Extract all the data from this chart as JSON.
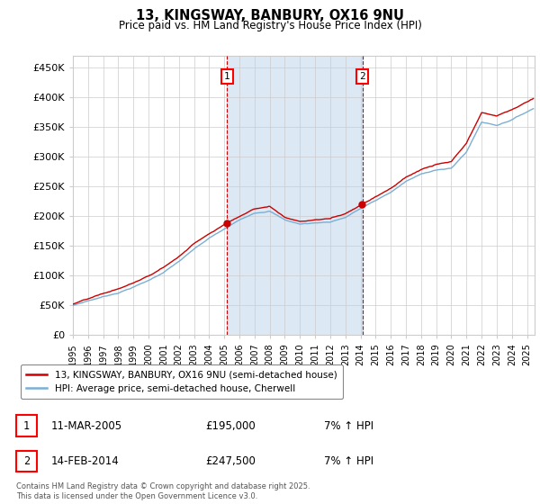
{
  "title": "13, KINGSWAY, BANBURY, OX16 9NU",
  "subtitle": "Price paid vs. HM Land Registry's House Price Index (HPI)",
  "ylabel_ticks": [
    "£0",
    "£50K",
    "£100K",
    "£150K",
    "£200K",
    "£250K",
    "£300K",
    "£350K",
    "£400K",
    "£450K"
  ],
  "ylabel_values": [
    0,
    50000,
    100000,
    150000,
    200000,
    250000,
    300000,
    350000,
    400000,
    450000
  ],
  "ylim": [
    0,
    470000
  ],
  "xlim_start": 1995.0,
  "xlim_end": 2025.5,
  "hpi_color": "#7bafd4",
  "price_color": "#cc0000",
  "sale1_x": 2005.19,
  "sale1_y": 195000,
  "sale2_x": 2014.12,
  "sale2_y": 247500,
  "vline_color": "#cc0000",
  "shade_color": "#dce9f5",
  "legend_label1": "13, KINGSWAY, BANBURY, OX16 9NU (semi-detached house)",
  "legend_label2": "HPI: Average price, semi-detached house, Cherwell",
  "annotation1_label": "1",
  "annotation2_label": "2",
  "table_row1": [
    "1",
    "11-MAR-2005",
    "£195,000",
    "7% ↑ HPI"
  ],
  "table_row2": [
    "2",
    "14-FEB-2014",
    "£247,500",
    "7% ↑ HPI"
  ],
  "footnote": "Contains HM Land Registry data © Crown copyright and database right 2025.\nThis data is licensed under the Open Government Licence v3.0.",
  "background_color": "#ffffff",
  "grid_color": "#cccccc",
  "tick_years": [
    1995,
    1996,
    1997,
    1998,
    1999,
    2000,
    2001,
    2002,
    2003,
    2004,
    2005,
    2006,
    2007,
    2008,
    2009,
    2010,
    2011,
    2012,
    2013,
    2014,
    2015,
    2016,
    2017,
    2018,
    2019,
    2020,
    2021,
    2022,
    2023,
    2024,
    2025
  ]
}
